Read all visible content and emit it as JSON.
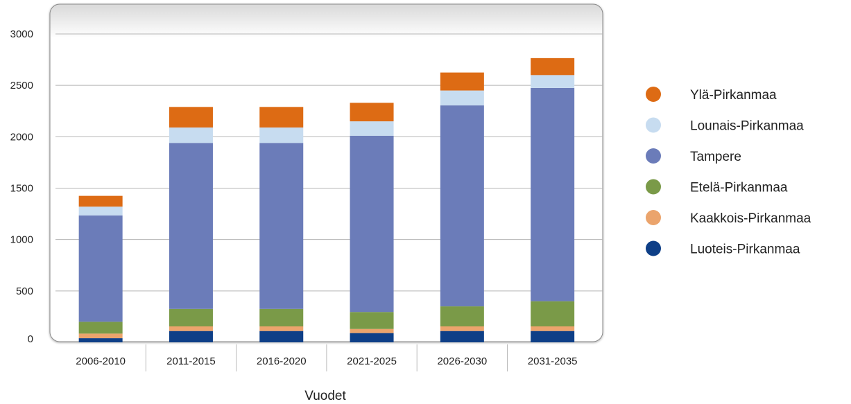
{
  "chart_data": {
    "type": "bar",
    "stacked": true,
    "xlabel": "Vuodet",
    "ylabel": "",
    "ylim": [
      0,
      3000
    ],
    "yticks": [
      0,
      500,
      1000,
      1500,
      2000,
      2500,
      3000
    ],
    "grid": "horizontal",
    "legend_position": "right",
    "categories": [
      "2006-2010",
      "2011-2015",
      "2016-2020",
      "2021-2025",
      "2026-2030",
      "2031-2035"
    ],
    "series": [
      {
        "name": "Luoteis-Pirkanmaa",
        "color": "#0e3f87",
        "values": [
          40,
          110,
          110,
          90,
          110,
          110
        ]
      },
      {
        "name": "Kaakkois-Pirkanmaa",
        "color": "#eba46c",
        "values": [
          45,
          45,
          45,
          40,
          45,
          45
        ]
      },
      {
        "name": "Etelä-Pirkanmaa",
        "color": "#7a9a48",
        "values": [
          115,
          170,
          170,
          165,
          195,
          245
        ]
      },
      {
        "name": "Tampere",
        "color": "#6b7cb9",
        "values": [
          1035,
          1615,
          1615,
          1715,
          1955,
          2075
        ]
      },
      {
        "name": "Lounais-Pirkanmaa",
        "color": "#c7dcf0",
        "values": [
          85,
          150,
          150,
          140,
          145,
          125
        ]
      },
      {
        "name": "Ylä-Pirkanmaa",
        "color": "#dd6b14",
        "values": [
          105,
          200,
          200,
          180,
          175,
          165
        ]
      }
    ]
  }
}
